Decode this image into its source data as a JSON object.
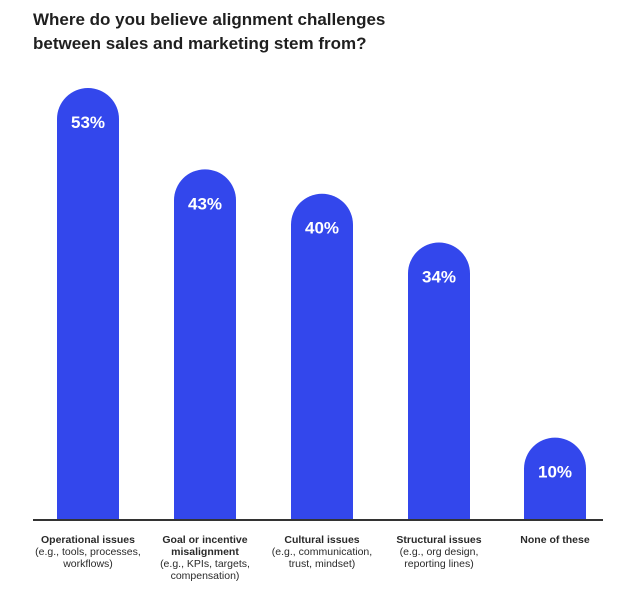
{
  "chart_data": {
    "type": "bar",
    "title_lines": [
      "Where do you believe alignment challenges",
      "between sales and marketing stem from?"
    ],
    "categories": [
      {
        "main": [
          "Operational issues"
        ],
        "sub": [
          "(e.g., tools, processes,",
          "workflows)"
        ]
      },
      {
        "main": [
          "Goal or incentive",
          "misalignment"
        ],
        "sub": [
          "(e.g., KPIs, targets,",
          "compensation)"
        ]
      },
      {
        "main": [
          "Cultural issues"
        ],
        "sub": [
          "(e.g., communication,",
          "trust, mindset)"
        ]
      },
      {
        "main": [
          "Structural issues"
        ],
        "sub": [
          "(e.g., org design,",
          "reporting lines)"
        ]
      },
      {
        "main": [
          "None of these"
        ],
        "sub": []
      }
    ],
    "values": [
      53,
      43,
      40,
      34,
      10
    ],
    "value_labels": [
      "53%",
      "43%",
      "40%",
      "34%",
      "10%"
    ],
    "ylim": [
      0,
      55
    ],
    "grid": false,
    "xlabel": "",
    "ylabel": "",
    "colors": {
      "bar": "#3347ec",
      "bar_text": "#ffffff",
      "axis": "#333333"
    }
  }
}
